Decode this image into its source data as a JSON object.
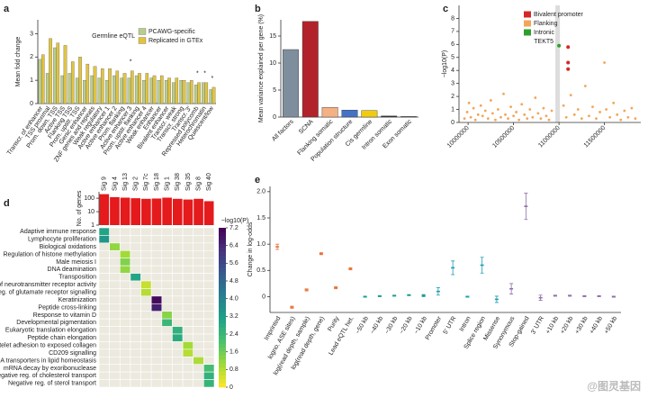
{
  "chart_data": [
    {
      "type": "bar",
      "label": "a",
      "title": "Germline eQTL",
      "ylabel": "Mean fold change",
      "categories": [
        "Transcr. of enhancer",
        "TSS proximal",
        "Prom. down. TSS",
        "Active TSS",
        "Flanking TSS",
        "Prom. upstr. TSS",
        "Genic enhancer",
        "ZNF genes and repeats",
        "Weak regulatory",
        "Active enhancer 1",
        "Active enhancer 2",
        "Prom. flanking",
        "Active enhancer 3",
        "Prom. upstr. flanking",
        "Active enhancer 4",
        "Weak enhancer",
        "Enhancer",
        "Bivalent enhancer",
        "Transcr. weak",
        "Transcr. strong",
        "Transcr. 3′",
        "Repressed polycomb",
        "Heterochromatin",
        "Quiescent/low"
      ],
      "series": [
        {
          "name": "PCAWG-specific",
          "color": "#b9cc8e",
          "values": [
            1.9,
            1.3,
            2.4,
            1.2,
            1.3,
            1.1,
            1.0,
            1.2,
            1.1,
            1.0,
            1.2,
            1.1,
            1.1,
            1.2,
            1.0,
            1.1,
            1.0,
            1.0,
            0.9,
            1.0,
            0.9,
            0.8,
            0.9,
            0.6
          ]
        },
        {
          "name": "Replicated in GTEx",
          "color": "#e2c33f",
          "values": [
            2.1,
            2.8,
            2.6,
            2.5,
            1.8,
            2.0,
            1.7,
            1.6,
            1.5,
            1.5,
            1.4,
            1.3,
            1.4,
            1.3,
            1.3,
            1.2,
            1.2,
            1.1,
            1.1,
            1.0,
            1.0,
            0.9,
            0.9,
            0.7
          ]
        }
      ],
      "annotations": [
        {
          "text": "*",
          "category": "Active enhancer 3"
        },
        {
          "text": "*",
          "category": "Repressed polycomb"
        },
        {
          "text": "*",
          "category": "Heterochromatin"
        },
        {
          "text": "*",
          "category": "Quiescent/low"
        }
      ],
      "ylim": [
        0,
        3.6
      ],
      "yticks": [
        0,
        1,
        2,
        3
      ]
    },
    {
      "type": "bar",
      "label": "b",
      "ylabel": "Mean variance explained per gene (%)",
      "categories": [
        "All factors",
        "SCNA",
        "Flanking somatic",
        "Population structure",
        "Cis germline",
        "Intron somatic",
        "Exon somatic"
      ],
      "values": [
        12.5,
        17.7,
        1.8,
        1.3,
        1.2,
        0.2,
        0.1
      ],
      "colors": [
        "#7f8e9c",
        "#b2222b",
        "#f4b183",
        "#4472c4",
        "#f2cc0c",
        "#333333",
        "#333333"
      ],
      "ylim": [
        0,
        18
      ],
      "yticks": [
        0,
        5,
        10,
        15
      ]
    },
    {
      "type": "scatter",
      "label": "c",
      "ylabel": "−log10(P)",
      "highlight": {
        "label": "TEKT5",
        "x": [
          10960000,
          11010000
        ]
      },
      "series": [
        {
          "name": "Bivalent promoter",
          "color": "#d62728",
          "x": [
            11100000,
            11100000,
            11100000
          ],
          "y": [
            5.8,
            4.6,
            4.1
          ]
        },
        {
          "name": "Flanking",
          "color": "#f2a65a",
          "x": [
            9960000,
            9990000,
            10010000,
            10030000,
            10060000,
            10080000,
            10110000,
            10140000,
            10160000,
            10190000,
            10220000,
            10250000,
            10270000,
            10300000,
            10330000,
            10360000,
            10390000,
            10410000,
            10440000,
            10470000,
            10500000,
            10530000,
            10560000,
            10590000,
            10620000,
            10650000,
            10680000,
            10710000,
            10740000,
            10770000,
            10800000,
            10830000,
            10860000,
            10890000,
            10920000,
            11050000,
            11080000,
            11130000,
            11170000,
            11210000,
            11250000,
            11290000,
            11330000,
            11370000,
            11410000,
            11450000,
            11500000,
            11520000,
            11560000,
            11600000,
            11640000,
            11680000,
            11720000,
            11760000,
            11800000,
            11840000
          ],
          "y": [
            0.3,
            0.8,
            1.5,
            0.4,
            1.1,
            0.2,
            0.6,
            1.3,
            0.5,
            0.9,
            0.3,
            1.7,
            0.7,
            0.2,
            1.0,
            0.4,
            2.2,
            0.6,
            0.3,
            1.2,
            0.5,
            0.8,
            0.2,
            1.4,
            0.6,
            0.3,
            1.0,
            0.4,
            1.9,
            0.7,
            0.3,
            1.1,
            0.5,
            0.2,
            0.9,
            1.3,
            0.4,
            2.1,
            0.6,
            1.0,
            0.3,
            2.8,
            0.5,
            1.2,
            0.3,
            0.8,
            4.6,
            1.0,
            0.4,
            1.5,
            0.6,
            0.2,
            0.9,
            0.4,
            1.1,
            0.3
          ]
        },
        {
          "name": "Intronic",
          "color": "#2ca02c",
          "x": [
            11000000
          ],
          "y": [
            5.9
          ]
        }
      ],
      "xlim": [
        9900000,
        11900000
      ],
      "xticks": [
        10000000,
        10500000,
        11000000,
        11500000
      ],
      "ylim": [
        0,
        9
      ],
      "yticks": [
        0,
        1,
        2,
        3,
        4,
        5,
        6,
        7,
        8
      ]
    },
    {
      "type": "heatmap",
      "label": "d",
      "columns": [
        "Sig 9",
        "Sig 4",
        "Sig 13",
        "Sig 2",
        "Sig 7c",
        "Sig 18",
        "Sig 1",
        "Sig 38",
        "Sig 35",
        "Sig 8",
        "Sig 40"
      ],
      "bar_label": "No. of genes",
      "bar_color": "#e41a1c",
      "bar_values": [
        200,
        120,
        110,
        100,
        90,
        95,
        110,
        90,
        80,
        90,
        60
      ],
      "bar_log": true,
      "bar_lim": [
        1,
        300
      ],
      "bar_ticks": [
        1,
        10,
        100
      ],
      "rows": [
        "Adaptive immune response",
        "Lymphocyte proliferation",
        "Biological oxidations",
        "Regulation of histone methylation",
        "Male meiosis I",
        "DNA deamination",
        "Transposition",
        "Reg. of neurotransmitter receptor activity",
        "Reg. of glutamate receptor signalling",
        "Keratinization",
        "Peptide cross-linking",
        "Response to vitamin D",
        "Developmental pigmentation",
        "Eukaryotic translation elongation",
        "Peptide chain elongation",
        "Platelet adhesion to exposed collagen",
        "CD209 signalling",
        "ABCA transporters in lipid homeostasis",
        "mRNA decay by exoribonuclease",
        "Negative reg. of cholesterol transport",
        "Negative reg. of sterol transport"
      ],
      "values": [
        [
          3.0,
          null,
          null,
          null,
          null,
          null,
          null,
          null,
          null,
          null,
          null
        ],
        [
          3.4,
          null,
          null,
          null,
          null,
          null,
          null,
          null,
          null,
          null,
          null
        ],
        [
          null,
          1.2,
          null,
          null,
          null,
          null,
          null,
          null,
          null,
          null,
          null
        ],
        [
          null,
          null,
          1.0,
          null,
          null,
          null,
          null,
          null,
          null,
          null,
          null
        ],
        [
          null,
          null,
          1.4,
          null,
          null,
          null,
          null,
          null,
          null,
          null,
          null
        ],
        [
          null,
          null,
          1.2,
          null,
          null,
          null,
          null,
          null,
          null,
          null,
          null
        ],
        [
          null,
          null,
          null,
          3.0,
          null,
          null,
          null,
          null,
          null,
          null,
          null
        ],
        [
          null,
          null,
          null,
          null,
          0.6,
          null,
          null,
          null,
          null,
          null,
          null
        ],
        [
          null,
          null,
          null,
          null,
          0.8,
          null,
          null,
          null,
          null,
          null,
          null
        ],
        [
          null,
          null,
          null,
          null,
          null,
          7.0,
          null,
          null,
          null,
          null,
          null
        ],
        [
          null,
          null,
          null,
          null,
          null,
          6.6,
          null,
          null,
          null,
          null,
          null
        ],
        [
          null,
          null,
          null,
          null,
          null,
          null,
          1.3,
          null,
          null,
          null,
          null
        ],
        [
          null,
          null,
          null,
          null,
          null,
          null,
          2.4,
          null,
          null,
          null,
          null
        ],
        [
          null,
          null,
          null,
          null,
          null,
          null,
          null,
          2.6,
          null,
          null,
          null
        ],
        [
          null,
          null,
          null,
          null,
          null,
          null,
          null,
          2.8,
          null,
          null,
          null
        ],
        [
          null,
          null,
          null,
          null,
          null,
          null,
          null,
          null,
          1.0,
          null,
          null
        ],
        [
          null,
          null,
          null,
          null,
          null,
          null,
          null,
          null,
          0.8,
          null,
          null
        ],
        [
          null,
          null,
          null,
          null,
          null,
          null,
          null,
          null,
          null,
          0.9,
          null
        ],
        [
          null,
          null,
          null,
          null,
          null,
          null,
          null,
          null,
          null,
          null,
          2.2
        ],
        [
          null,
          null,
          null,
          null,
          null,
          null,
          null,
          null,
          null,
          null,
          2.6
        ],
        [
          null,
          null,
          null,
          null,
          null,
          null,
          null,
          null,
          null,
          null,
          2.5
        ]
      ],
      "colorbar_label": "−log10(P)",
      "clim": [
        0,
        7.2
      ],
      "cticks": [
        0,
        0.8,
        1.6,
        2.4,
        3.2,
        {
          "value": 4,
          "label": "4.0"
        },
        4.8,
        5.6,
        6.4,
        7.2
      ]
    },
    {
      "type": "errorbar",
      "label": "e",
      "ylabel": "Change in log-odds",
      "categories": [
        "Imprinted",
        "logno. ASE sites)",
        "log(read depth, sample)",
        "log(read depth, gene)",
        "Purity",
        "Lead eQTL het.",
        "−50 kb",
        "−40 kb",
        "−30 kb",
        "−20 kb",
        "−10 kb",
        "Promoter",
        "5′ UTR",
        "Intron",
        "Splice region",
        "Missense",
        "Synonymous",
        "Stop-gained",
        "3′ UTR",
        "+10 kb",
        "+20 kb",
        "+30 kb",
        "+40 kb",
        "+50 kb"
      ],
      "values": [
        0.95,
        -0.2,
        0.13,
        0.82,
        0.17,
        0.53,
        0.0,
        0.01,
        0.02,
        0.03,
        0.02,
        0.1,
        0.55,
        0.0,
        0.6,
        -0.05,
        0.15,
        1.72,
        -0.02,
        0.02,
        0.02,
        0.01,
        0.01,
        0.0
      ],
      "errors": [
        0.05,
        0.02,
        0.02,
        0.02,
        0.02,
        0.02,
        0.01,
        0.01,
        0.01,
        0.01,
        0.02,
        0.07,
        0.13,
        0.01,
        0.15,
        0.06,
        0.1,
        0.25,
        0.05,
        0.01,
        0.01,
        0.01,
        0.01,
        0.01
      ],
      "colors": [
        "#e8743b",
        "#e8743b",
        "#e8743b",
        "#e8743b",
        "#e8743b",
        "#e8743b",
        "#1a9e8f",
        "#1a9e8f",
        "#1a9e8f",
        "#1a9e8f",
        "#1a9e8f",
        "#1f9eb3",
        "#1f9eb3",
        "#1f9eb3",
        "#1f9eb3",
        "#1f9eb3",
        "#8e6fa8",
        "#8e6fa8",
        "#8e6fa8",
        "#8e6fa8",
        "#8e6fa8",
        "#8e6fa8",
        "#8e6fa8",
        "#8e6fa8"
      ],
      "ylim": [
        -0.3,
        2.1
      ],
      "yticks": [
        0,
        0.5,
        {
          "value": 1,
          "label": "1.0"
        },
        1.5,
        {
          "value": 2,
          "label": "2.0"
        }
      ]
    }
  ],
  "watermark": "@图灵基因"
}
